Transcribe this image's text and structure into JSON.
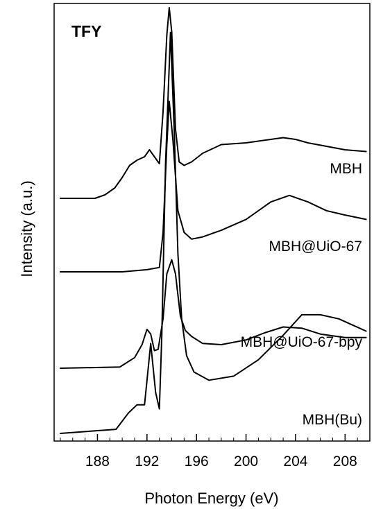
{
  "chart_data": {
    "type": "line",
    "title": "",
    "panel_label": "TFY",
    "xlabel": "Photon Energy (eV)",
    "ylabel": "Intensity (a.u.)",
    "xlim": [
      184.5,
      210
    ],
    "xticks": [
      188,
      192,
      196,
      200,
      204,
      208
    ],
    "tick_labels": [
      "188",
      "192",
      "196",
      "200",
      "204",
      "208"
    ],
    "y_units": "arbitrary, vertically offset",
    "grid": false,
    "legend": "none (series labeled inline at right)",
    "line_color": "#000000",
    "series": [
      {
        "name": "MBH",
        "x": [
          185.0,
          187.8,
          188.6,
          189.4,
          190.0,
          190.6,
          191.2,
          191.8,
          192.2,
          192.6,
          193.0,
          193.3,
          193.6,
          193.8,
          194.0,
          194.3,
          194.6,
          195.0,
          195.6,
          196.5,
          198.0,
          200.0,
          202.0,
          203.0,
          204.0,
          205.0,
          206.5,
          208.0,
          209.7
        ],
        "y": [
          0.0,
          0.0,
          0.1,
          0.3,
          0.6,
          0.95,
          1.1,
          1.2,
          1.4,
          1.2,
          1.0,
          2.5,
          4.7,
          5.5,
          4.8,
          2.0,
          1.05,
          0.95,
          1.05,
          1.3,
          1.55,
          1.6,
          1.7,
          1.75,
          1.7,
          1.6,
          1.5,
          1.4,
          1.35
        ]
      },
      {
        "name": "MBH@UiO-67",
        "x": [
          185.0,
          190.0,
          192.0,
          193.0,
          193.3,
          193.6,
          193.8,
          194.1,
          194.5,
          195.0,
          195.6,
          196.5,
          198.0,
          200.0,
          202.0,
          203.5,
          205.0,
          206.5,
          208.0,
          209.7
        ],
        "y": [
          0.0,
          0.0,
          0.05,
          0.1,
          0.9,
          2.9,
          3.9,
          3.0,
          1.4,
          0.9,
          0.75,
          0.8,
          0.95,
          1.2,
          1.6,
          1.75,
          1.6,
          1.4,
          1.3,
          1.2
        ]
      },
      {
        "name": "MBH@UiO-67-bpy",
        "x": [
          185.0,
          189.8,
          190.4,
          191.0,
          191.6,
          192.0,
          192.3,
          192.6,
          192.9,
          193.3,
          193.6,
          194.0,
          194.3,
          194.7,
          195.1,
          195.6,
          196.5,
          198.0,
          200.0,
          201.5,
          203.0,
          204.5,
          206.0,
          208.0,
          209.7
        ],
        "y": [
          0.0,
          0.05,
          0.25,
          0.45,
          1.0,
          1.65,
          1.45,
          0.75,
          0.8,
          2.1,
          4.0,
          4.6,
          4.0,
          2.2,
          1.6,
          1.35,
          1.05,
          1.0,
          1.2,
          1.5,
          1.75,
          1.7,
          1.45,
          1.3,
          1.3
        ]
      },
      {
        "name": "MBH(Bu)",
        "x": [
          185.0,
          189.5,
          190.5,
          191.2,
          191.8,
          192.3,
          192.7,
          193.0,
          193.2,
          193.5,
          193.9,
          194.2,
          194.5,
          194.8,
          195.2,
          195.8,
          197.0,
          199.0,
          201.0,
          203.0,
          204.5,
          206.0,
          207.5,
          209.7
        ],
        "y": [
          0.0,
          0.05,
          0.25,
          0.35,
          0.35,
          1.1,
          0.5,
          0.3,
          1.2,
          3.3,
          4.9,
          3.7,
          2.2,
          1.4,
          0.95,
          0.75,
          0.65,
          0.7,
          0.9,
          1.2,
          1.45,
          1.45,
          1.4,
          1.25
        ]
      }
    ]
  }
}
